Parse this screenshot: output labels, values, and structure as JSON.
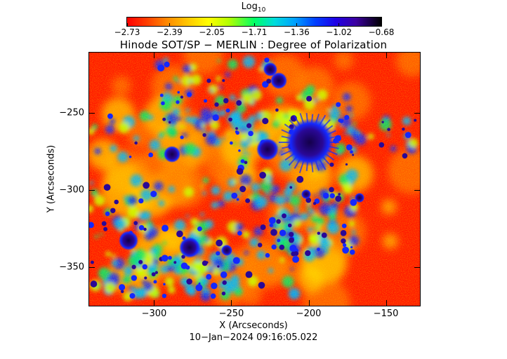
{
  "colorbar": {
    "title_main": "Log",
    "title_sub": "10",
    "ticks": [
      "−2.73",
      "−2.39",
      "−2.05",
      "−1.71",
      "−1.36",
      "−1.02",
      "−0.68"
    ],
    "range": [
      -2.73,
      -0.68
    ]
  },
  "title": "Hinode SOT/SP − MERLIN : Degree of Polarization",
  "xaxis": {
    "label": "X (Arcseconds)",
    "ticks": [
      "−300",
      "−250",
      "−200",
      "−150"
    ],
    "range": [
      -342,
      -128
    ]
  },
  "yaxis": {
    "label": "Y (Arcseconds)",
    "ticks": [
      "−250",
      "−300",
      "−350"
    ],
    "range": [
      -375,
      -211
    ]
  },
  "timestamp": "10−Jan−2024 09:16:05.022",
  "map": {
    "colors": [
      "#ff1a00",
      "#ff7a00",
      "#ffd200",
      "#c8ff00",
      "#00e66e",
      "#00b4ff",
      "#1428ff",
      "#2a0896",
      "#14004a"
    ]
  }
}
